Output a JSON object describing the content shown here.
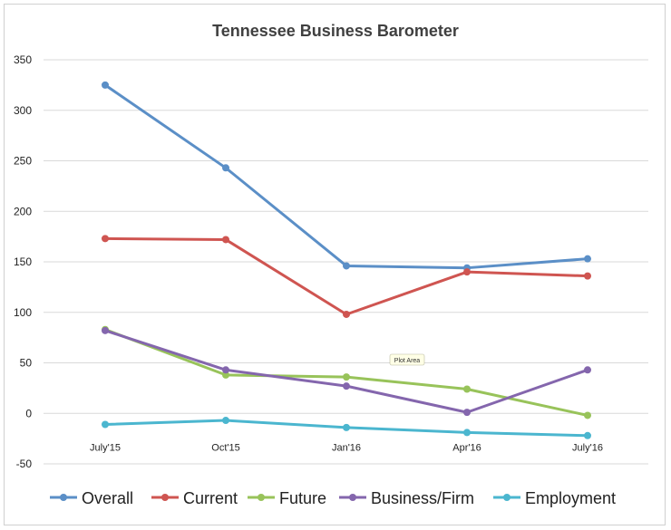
{
  "chart_data": {
    "type": "line",
    "title": "Tennessee Business Barometer",
    "categories": [
      "July'15",
      "Oct'15",
      "Jan'16",
      "Apr'16",
      "July'16"
    ],
    "ylim": [
      -50,
      350
    ],
    "yticks": [
      350,
      300,
      250,
      200,
      150,
      100,
      50,
      0,
      -50
    ],
    "grid": true,
    "legend_position": "bottom",
    "annotation": "Plot Area",
    "series": [
      {
        "name": "Overall",
        "color": "#5b8fc7",
        "values": [
          325,
          243,
          146,
          144,
          153
        ]
      },
      {
        "name": "Current",
        "color": "#cf5551",
        "values": [
          173,
          172,
          98,
          140,
          136
        ]
      },
      {
        "name": "Future",
        "color": "#98c35a",
        "values": [
          83,
          38,
          36,
          24,
          -2
        ]
      },
      {
        "name": "Business/Firm",
        "color": "#8466ad",
        "values": [
          82,
          43,
          27,
          1,
          43
        ]
      },
      {
        "name": "Employment",
        "color": "#4bb6cf",
        "values": [
          -11,
          -7,
          -14,
          -19,
          -22
        ]
      }
    ]
  }
}
